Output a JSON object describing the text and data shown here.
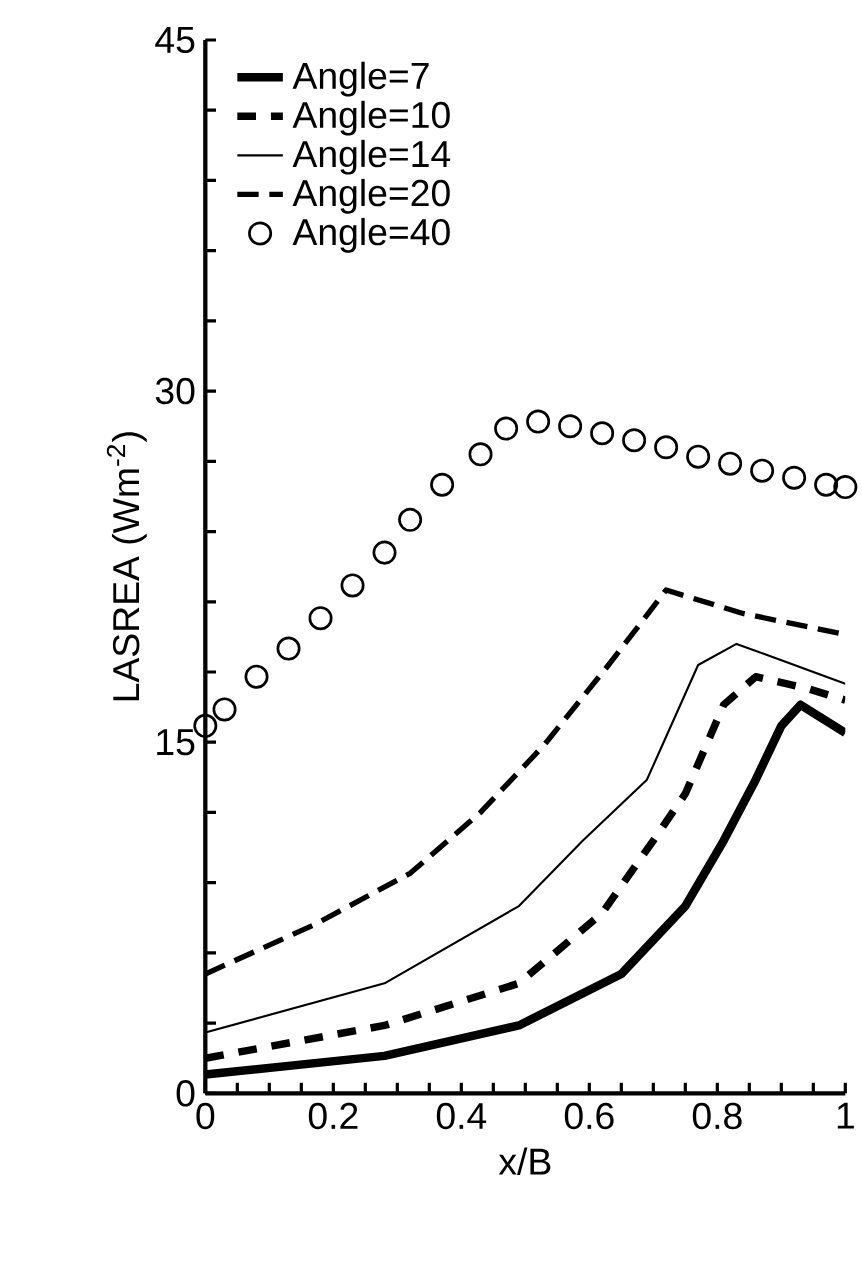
{
  "chart_data": {
    "type": "line",
    "xlabel": "x/B",
    "ylabel": "LASREA (Wm$^{-2}$)",
    "xlim": [
      0,
      1
    ],
    "ylim": [
      0,
      45
    ],
    "xticks": [
      0,
      {
        "value": 0.05,
        "label": null
      },
      0.2,
      {
        "value": 0.1,
        "label": null
      },
      {
        "value": 0.15,
        "label": null
      },
      {
        "value": 0.25,
        "label": null
      },
      {
        "value": 0.3,
        "label": null
      },
      {
        "value": 0.35,
        "label": null
      },
      0.4,
      {
        "value": 0.45,
        "label": null
      },
      {
        "value": 0.5,
        "label": null
      },
      {
        "value": 0.55,
        "label": null
      },
      0.6,
      {
        "value": 0.65,
        "label": null
      },
      {
        "value": 0.7,
        "label": null
      },
      {
        "value": 0.75,
        "label": null
      },
      0.8,
      {
        "value": 0.85,
        "label": null
      },
      {
        "value": 0.9,
        "label": null
      },
      {
        "value": 0.95,
        "label": null
      },
      1
    ],
    "yticks": [
      0,
      {
        "value": 3,
        "label": null
      },
      {
        "value": 6,
        "label": null
      },
      {
        "value": 9,
        "label": null
      },
      {
        "value": 12,
        "label": null
      },
      15,
      {
        "value": 18,
        "label": null
      },
      {
        "value": 21,
        "label": null
      },
      {
        "value": 24,
        "label": null
      },
      {
        "value": 27,
        "label": null
      },
      30,
      {
        "value": 33,
        "label": null
      },
      {
        "value": 36,
        "label": null
      },
      {
        "value": 39,
        "label": null
      },
      {
        "value": 42,
        "label": null
      },
      45
    ],
    "legend": "top left",
    "grid": false,
    "series": [
      {
        "name": "Angle=7",
        "color": "#000000",
        "line_style": "solid",
        "marker": "none",
        "x": [
          0,
          0.28,
          0.49,
          0.65,
          0.75,
          0.81,
          0.86,
          0.9,
          0.93,
          1.0
        ],
        "values": [
          0.8,
          1.6,
          2.9,
          5.1,
          8.0,
          10.8,
          13.4,
          15.7,
          16.6,
          15.4
        ]
      },
      {
        "name": "Angle=10",
        "color": "#000000",
        "line_style": "dashed",
        "marker": "none",
        "x": [
          0,
          0.28,
          0.49,
          0.62,
          0.7,
          0.75,
          0.81,
          0.86,
          0.94,
          1.0
        ],
        "values": [
          1.5,
          2.9,
          4.7,
          7.7,
          10.8,
          12.8,
          16.6,
          17.8,
          17.3,
          16.8
        ]
      },
      {
        "name": "Angle=14",
        "color": "#000000",
        "line_style": "solid",
        "marker": "none",
        "x": [
          0,
          0.28,
          0.49,
          0.59,
          0.69,
          0.77,
          0.83,
          1.0
        ],
        "values": [
          2.6,
          4.7,
          8.0,
          10.8,
          13.4,
          18.3,
          19.2,
          17.5
        ]
      },
      {
        "name": "Angle=20",
        "color": "#000000",
        "line_style": "dashed",
        "marker": "none",
        "x": [
          0,
          0.17,
          0.32,
          0.43,
          0.53,
          0.63,
          0.72,
          0.84,
          1.0
        ],
        "values": [
          5.1,
          7.2,
          9.4,
          12.0,
          14.9,
          18.3,
          21.5,
          20.5,
          19.6
        ]
      },
      {
        "name": "Angle=40",
        "type": "scatter",
        "color": "#000000",
        "marker": "circle",
        "x": [
          0,
          0.03,
          0.08,
          0.13,
          0.18,
          0.23,
          0.28,
          0.32,
          0.37,
          0.43,
          0.47,
          0.52,
          0.57,
          0.62,
          0.67,
          0.72,
          0.77,
          0.82,
          0.87,
          0.92,
          0.97,
          1.0
        ],
        "values": [
          15.7,
          16.4,
          17.8,
          19.0,
          20.3,
          21.7,
          23.1,
          24.5,
          26.0,
          27.3,
          28.4,
          28.7,
          28.5,
          28.2,
          27.9,
          27.6,
          27.2,
          26.9,
          26.6,
          26.3,
          26.0,
          25.9
        ]
      }
    ]
  }
}
